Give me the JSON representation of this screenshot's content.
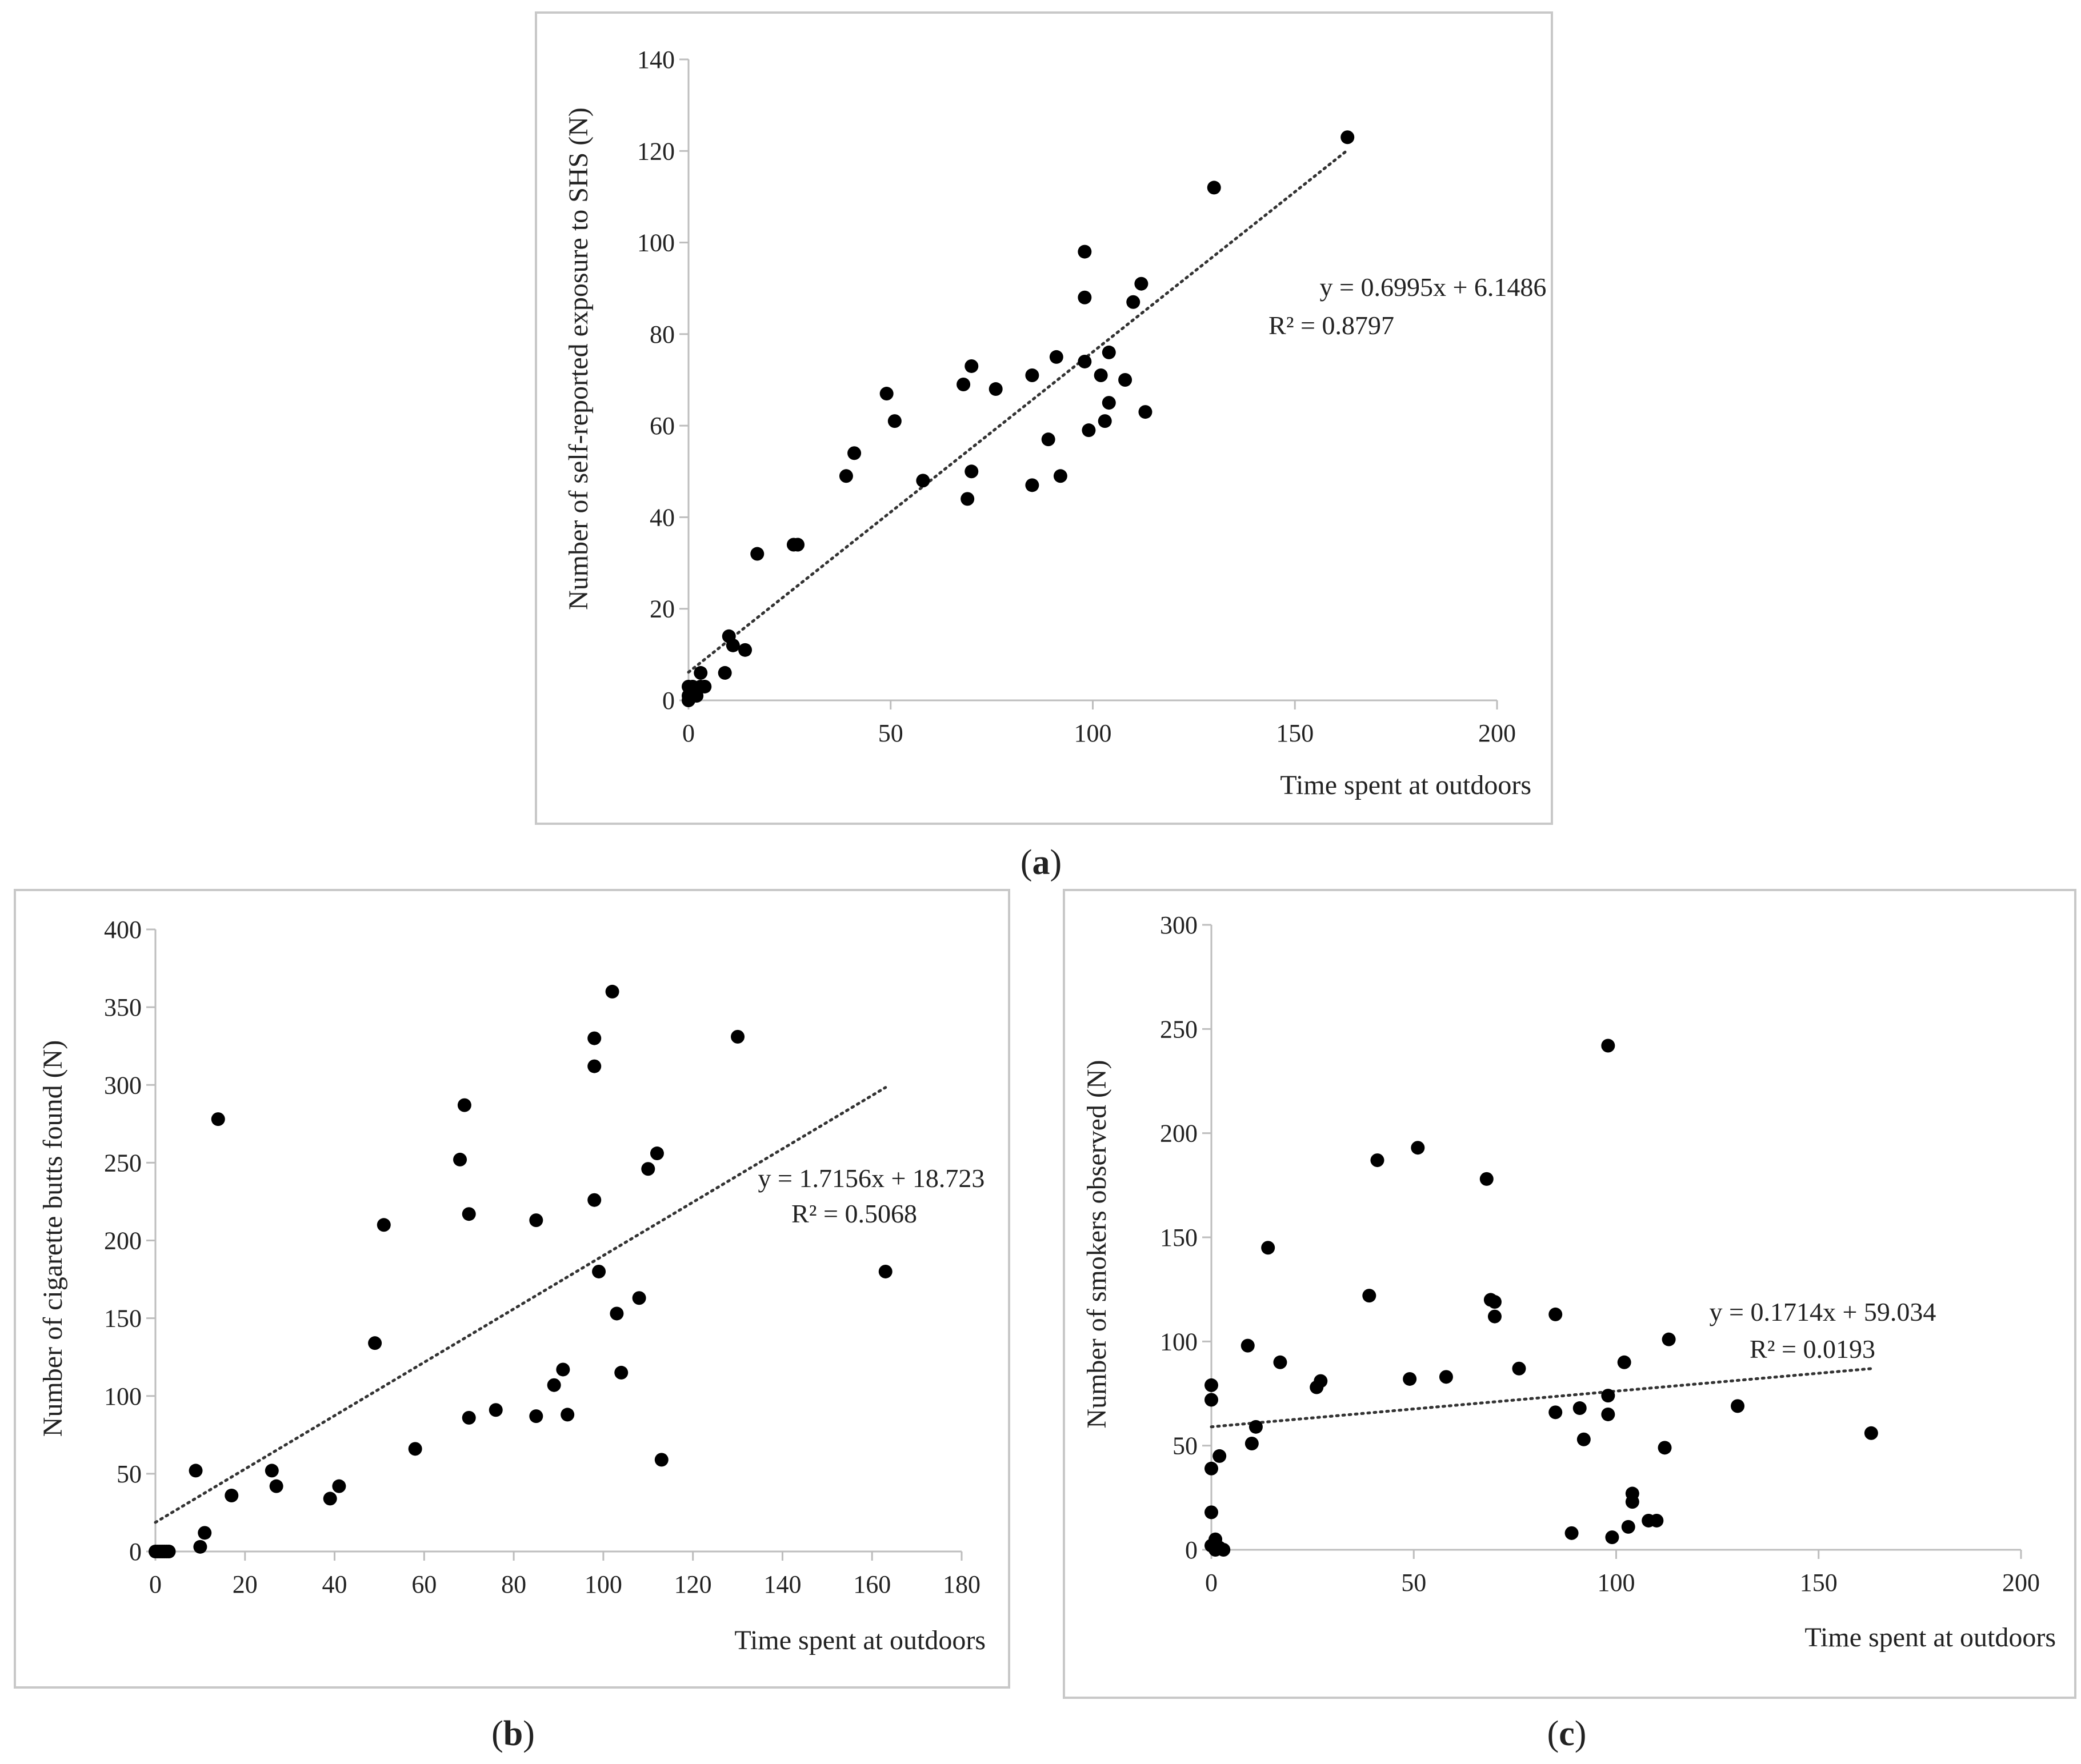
{
  "chart_data": [
    {
      "id": "a",
      "type": "scatter",
      "panel_label": "a",
      "xlabel": "Time spent at outdoors",
      "ylabel": "Number of self-reported exposure to SHS (N)",
      "xlim": [
        0,
        200
      ],
      "ylim": [
        0,
        140
      ],
      "xticks": [
        0,
        50,
        100,
        150,
        200
      ],
      "yticks": [
        0,
        20,
        40,
        60,
        80,
        100,
        120,
        140
      ],
      "grid": false,
      "legend": "none",
      "trendline": {
        "slope": 0.6995,
        "intercept": 6.1486,
        "x_range": [
          0,
          163
        ],
        "style": "dotted"
      },
      "annotation": {
        "equation": "y = 0.6995x + 6.1486",
        "r2": "R² = 0.8797"
      },
      "points": [
        [
          0,
          0
        ],
        [
          0,
          1
        ],
        [
          0,
          3
        ],
        [
          1,
          2
        ],
        [
          1,
          3
        ],
        [
          2,
          2
        ],
        [
          2,
          1
        ],
        [
          3,
          3
        ],
        [
          3,
          6
        ],
        [
          4,
          3
        ],
        [
          9,
          6
        ],
        [
          10,
          14
        ],
        [
          11,
          12
        ],
        [
          14,
          11
        ],
        [
          17,
          32
        ],
        [
          26,
          34
        ],
        [
          27,
          34
        ],
        [
          39,
          49
        ],
        [
          41,
          54
        ],
        [
          49,
          67
        ],
        [
          51,
          61
        ],
        [
          58,
          48
        ],
        [
          68,
          69
        ],
        [
          69,
          44
        ],
        [
          70,
          50
        ],
        [
          70,
          73
        ],
        [
          76,
          68
        ],
        [
          85,
          71
        ],
        [
          85,
          47
        ],
        [
          89,
          57
        ],
        [
          91,
          75
        ],
        [
          92,
          49
        ],
        [
          98,
          74
        ],
        [
          98,
          98
        ],
        [
          98,
          88
        ],
        [
          99,
          59
        ],
        [
          102,
          71
        ],
        [
          103,
          61
        ],
        [
          104,
          76
        ],
        [
          104,
          65
        ],
        [
          108,
          70
        ],
        [
          110,
          87
        ],
        [
          112,
          91
        ],
        [
          113,
          63
        ],
        [
          130,
          112
        ],
        [
          163,
          123
        ]
      ]
    },
    {
      "id": "b",
      "type": "scatter",
      "panel_label": "b",
      "xlabel": "Time spent at outdoors",
      "ylabel": "Number of cigarette butts found (N)",
      "xlim": [
        0,
        180
      ],
      "ylim": [
        0,
        400
      ],
      "xticks": [
        0,
        20,
        40,
        60,
        80,
        100,
        120,
        140,
        160,
        180
      ],
      "yticks": [
        0,
        50,
        100,
        150,
        200,
        250,
        300,
        350,
        400
      ],
      "grid": false,
      "legend": "none",
      "trendline": {
        "slope": 1.7156,
        "intercept": 18.723,
        "x_range": [
          0,
          163
        ],
        "style": "dotted"
      },
      "annotation": {
        "equation": "y = 1.7156x + 18.723",
        "r2": "R² = 0.5068"
      },
      "points": [
        [
          0,
          0
        ],
        [
          0.5,
          0
        ],
        [
          1,
          0
        ],
        [
          1.5,
          0
        ],
        [
          2,
          0
        ],
        [
          2.5,
          0
        ],
        [
          3,
          0
        ],
        [
          9,
          52
        ],
        [
          10,
          3
        ],
        [
          11,
          12
        ],
        [
          14,
          278
        ],
        [
          17,
          36
        ],
        [
          26,
          52
        ],
        [
          27,
          42
        ],
        [
          39,
          34
        ],
        [
          41,
          42
        ],
        [
          49,
          134
        ],
        [
          51,
          210
        ],
        [
          58,
          66
        ],
        [
          68,
          252
        ],
        [
          69,
          287
        ],
        [
          70,
          217
        ],
        [
          70,
          86
        ],
        [
          76,
          91
        ],
        [
          85,
          213
        ],
        [
          85,
          87
        ],
        [
          89,
          107
        ],
        [
          91,
          117
        ],
        [
          92,
          88
        ],
        [
          98,
          330
        ],
        [
          98,
          312
        ],
        [
          98,
          226
        ],
        [
          99,
          180
        ],
        [
          102,
          360
        ],
        [
          103,
          153
        ],
        [
          104,
          115
        ],
        [
          108,
          163
        ],
        [
          110,
          246
        ],
        [
          112,
          256
        ],
        [
          113,
          59
        ],
        [
          130,
          331
        ],
        [
          163,
          180
        ]
      ]
    },
    {
      "id": "c",
      "type": "scatter",
      "panel_label": "c",
      "xlabel": "Time spent at outdoors",
      "ylabel": "Number of smokers observed (N)",
      "xlim": [
        0,
        200
      ],
      "ylim": [
        0,
        300
      ],
      "xticks": [
        0,
        50,
        100,
        150,
        200
      ],
      "yticks": [
        0,
        50,
        100,
        150,
        200,
        250,
        300
      ],
      "grid": false,
      "legend": "none",
      "trendline": {
        "slope": 0.1714,
        "intercept": 59.034,
        "x_range": [
          0,
          163
        ],
        "style": "dotted"
      },
      "annotation": {
        "equation": "y = 0.1714x + 59.034",
        "r2": "R² = 0.0193"
      },
      "points": [
        [
          0,
          79
        ],
        [
          0,
          72
        ],
        [
          0,
          39
        ],
        [
          0,
          18
        ],
        [
          0,
          2
        ],
        [
          1,
          5
        ],
        [
          1,
          0
        ],
        [
          2,
          45
        ],
        [
          2,
          1
        ],
        [
          3,
          0
        ],
        [
          9,
          98
        ],
        [
          10,
          51
        ],
        [
          11,
          59
        ],
        [
          14,
          145
        ],
        [
          17,
          90
        ],
        [
          26,
          78
        ],
        [
          27,
          81
        ],
        [
          39,
          122
        ],
        [
          41,
          187
        ],
        [
          49,
          82
        ],
        [
          51,
          193
        ],
        [
          58,
          83
        ],
        [
          68,
          178
        ],
        [
          69,
          120
        ],
        [
          70,
          112
        ],
        [
          70,
          119
        ],
        [
          76,
          87
        ],
        [
          85,
          113
        ],
        [
          85,
          66
        ],
        [
          89,
          8
        ],
        [
          91,
          68
        ],
        [
          92,
          53
        ],
        [
          98,
          242
        ],
        [
          98,
          74
        ],
        [
          98,
          65
        ],
        [
          99,
          6
        ],
        [
          102,
          90
        ],
        [
          103,
          11
        ],
        [
          104,
          27
        ],
        [
          104,
          23
        ],
        [
          108,
          14
        ],
        [
          110,
          14
        ],
        [
          112,
          49
        ],
        [
          113,
          101
        ],
        [
          130,
          69
        ],
        [
          163,
          56
        ]
      ]
    }
  ]
}
